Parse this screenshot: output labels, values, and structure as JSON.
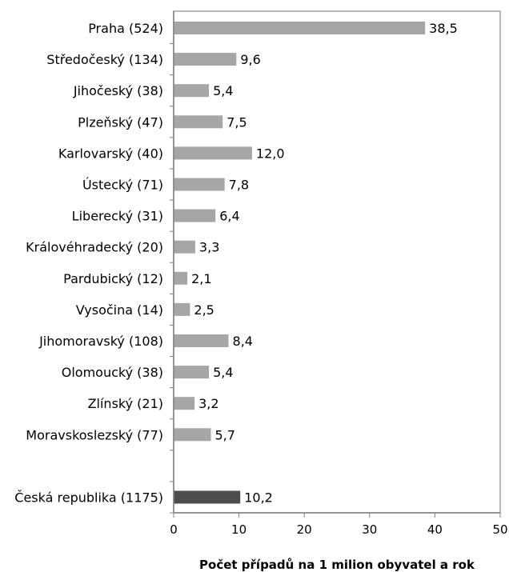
{
  "chart_data": {
    "type": "bar",
    "orientation": "horizontal",
    "categories": [
      "Praha  (524)",
      "Středočeský  (134)",
      "Jihočeský  (38)",
      "Plzeňský  (47)",
      "Karlovarský  (40)",
      "Ústecký  (71)",
      "Liberecký  (31)",
      "Královéhradecký  (20)",
      "Pardubický  (12)",
      "Vysočina  (14)",
      "Jihomoravský  (108)",
      "Olomoucký  (38)",
      "Zlínský  (21)",
      "Moravskoslezský  (77)",
      "",
      "Česká republika  (1175)"
    ],
    "values": [
      38.5,
      9.6,
      5.4,
      7.5,
      12.0,
      7.8,
      6.4,
      3.3,
      2.1,
      2.5,
      8.4,
      5.4,
      3.2,
      5.7,
      null,
      10.2
    ],
    "value_labels": [
      "38,5",
      "9,6",
      "5,4",
      "7,5",
      "12,0",
      "7,8",
      "6,4",
      "3,3",
      "2,1",
      "2,5",
      "8,4",
      "5,4",
      "3,2",
      "5,7",
      "",
      "10,2"
    ],
    "highlight_index": 15,
    "xlabel": "Počet případů na 1 milion obyvatel a rok",
    "xlim": [
      0,
      50
    ],
    "xticks": [
      0,
      10,
      20,
      30,
      40,
      50
    ],
    "grid": false,
    "colors": {
      "bar": "#a6a6a6",
      "highlight_bar": "#4d4d4d",
      "axis": "#808080",
      "plot_border": "#a0a0a0"
    }
  }
}
